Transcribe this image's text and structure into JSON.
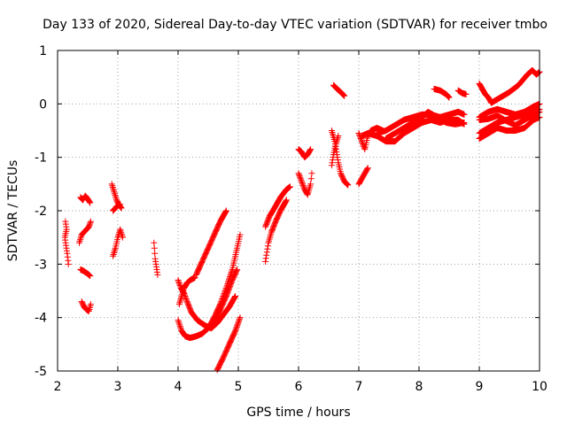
{
  "chart_data": {
    "type": "scatter",
    "title": "Day 133 of 2020, Sidereal Day-to-day VTEC variation (SDTVAR) for receiver tmbo",
    "xlabel": "GPS time / hours",
    "ylabel": "SDTVAR / TECUs",
    "xlim": [
      2,
      10
    ],
    "ylim": [
      -5,
      1
    ],
    "xticks": [
      "2",
      "3",
      "4",
      "5",
      "6",
      "7",
      "8",
      "9",
      "10"
    ],
    "yticks": [
      "-5",
      "-4",
      "-3",
      "-2",
      "-1",
      "0",
      "1"
    ],
    "grid": true,
    "marker": "+",
    "color": "#ff0000",
    "segments": [
      [
        [
          2.13,
          -2.2
        ],
        [
          2.15,
          -2.35
        ],
        [
          2.12,
          -2.5
        ],
        [
          2.14,
          -2.65
        ],
        [
          2.16,
          -2.8
        ],
        [
          2.18,
          -3.0
        ]
      ],
      [
        [
          2.38,
          -1.75
        ],
        [
          2.42,
          -1.8
        ],
        [
          2.46,
          -1.72
        ],
        [
          2.5,
          -1.78
        ],
        [
          2.54,
          -1.85
        ]
      ],
      [
        [
          2.36,
          -2.6
        ],
        [
          2.4,
          -2.45
        ],
        [
          2.44,
          -2.4
        ],
        [
          2.48,
          -2.35
        ],
        [
          2.52,
          -2.3
        ],
        [
          2.55,
          -2.2
        ]
      ],
      [
        [
          2.38,
          -3.1
        ],
        [
          2.42,
          -3.12
        ],
        [
          2.46,
          -3.15
        ],
        [
          2.5,
          -3.18
        ],
        [
          2.54,
          -3.22
        ]
      ],
      [
        [
          2.4,
          -3.7
        ],
        [
          2.44,
          -3.8
        ],
        [
          2.48,
          -3.85
        ],
        [
          2.52,
          -3.88
        ],
        [
          2.55,
          -3.75
        ]
      ],
      [
        [
          2.9,
          -1.5
        ],
        [
          2.94,
          -1.65
        ],
        [
          2.98,
          -1.8
        ],
        [
          3.02,
          -1.9
        ],
        [
          3.06,
          -1.95
        ]
      ],
      [
        [
          2.92,
          -2.0
        ],
        [
          2.96,
          -1.95
        ],
        [
          3.0,
          -1.9
        ],
        [
          3.04,
          -1.88
        ]
      ],
      [
        [
          2.92,
          -2.85
        ],
        [
          2.96,
          -2.7
        ],
        [
          3.0,
          -2.5
        ],
        [
          3.04,
          -2.35
        ],
        [
          3.08,
          -2.5
        ]
      ],
      [
        [
          3.6,
          -2.6
        ],
        [
          3.62,
          -2.9
        ],
        [
          3.64,
          -3.05
        ],
        [
          3.66,
          -3.2
        ]
      ],
      [
        [
          4.0,
          -3.3
        ],
        [
          4.05,
          -3.45
        ],
        [
          4.1,
          -3.55
        ],
        [
          4.15,
          -3.7
        ],
        [
          4.22,
          -3.9
        ],
        [
          4.32,
          -4.05
        ],
        [
          4.45,
          -4.15
        ],
        [
          4.55,
          -4.2
        ],
        [
          4.65,
          -4.1
        ],
        [
          4.75,
          -3.95
        ],
        [
          4.85,
          -3.8
        ],
        [
          4.95,
          -3.6
        ]
      ],
      [
        [
          4.0,
          -4.05
        ],
        [
          4.06,
          -4.25
        ],
        [
          4.12,
          -4.35
        ],
        [
          4.2,
          -4.38
        ],
        [
          4.3,
          -4.35
        ],
        [
          4.4,
          -4.3
        ],
        [
          4.5,
          -4.2
        ],
        [
          4.6,
          -4.05
        ],
        [
          4.7,
          -3.85
        ],
        [
          4.8,
          -3.6
        ],
        [
          4.9,
          -3.3
        ],
        [
          4.98,
          -3.1
        ]
      ],
      [
        [
          4.02,
          -3.75
        ],
        [
          4.06,
          -3.6
        ],
        [
          4.1,
          -3.45
        ],
        [
          4.15,
          -3.35
        ],
        [
          4.2,
          -3.3
        ],
        [
          4.28,
          -3.25
        ]
      ],
      [
        [
          4.3,
          -3.2
        ],
        [
          4.4,
          -2.95
        ],
        [
          4.5,
          -2.7
        ],
        [
          4.6,
          -2.45
        ],
        [
          4.7,
          -2.2
        ],
        [
          4.8,
          -2.0
        ]
      ],
      [
        [
          4.5,
          -4.2
        ],
        [
          4.6,
          -4.0
        ],
        [
          4.7,
          -3.75
        ],
        [
          4.8,
          -3.45
        ],
        [
          4.9,
          -3.1
        ],
        [
          4.98,
          -2.7
        ],
        [
          5.03,
          -2.45
        ]
      ],
      [
        [
          4.65,
          -4.98
        ],
        [
          4.75,
          -4.75
        ],
        [
          4.85,
          -4.5
        ],
        [
          4.95,
          -4.25
        ],
        [
          5.03,
          -4.0
        ]
      ],
      [
        [
          5.45,
          -2.95
        ],
        [
          5.5,
          -2.6
        ],
        [
          5.55,
          -2.4
        ],
        [
          5.62,
          -2.2
        ],
        [
          5.7,
          -2.0
        ],
        [
          5.8,
          -1.8
        ]
      ],
      [
        [
          5.45,
          -2.3
        ],
        [
          5.52,
          -2.1
        ],
        [
          5.6,
          -1.95
        ],
        [
          5.7,
          -1.75
        ],
        [
          5.8,
          -1.6
        ],
        [
          5.86,
          -1.55
        ]
      ],
      [
        [
          6.0,
          -0.85
        ],
        [
          6.05,
          -0.9
        ],
        [
          6.1,
          -1.0
        ],
        [
          6.15,
          -0.95
        ],
        [
          6.2,
          -0.85
        ]
      ],
      [
        [
          6.0,
          -1.3
        ],
        [
          6.05,
          -1.45
        ],
        [
          6.1,
          -1.6
        ],
        [
          6.15,
          -1.7
        ],
        [
          6.2,
          -1.5
        ],
        [
          6.22,
          -1.3
        ]
      ],
      [
        [
          6.58,
          0.35
        ],
        [
          6.64,
          0.28
        ],
        [
          6.7,
          0.22
        ],
        [
          6.76,
          0.15
        ]
      ],
      [
        [
          6.55,
          -0.5
        ],
        [
          6.6,
          -0.7
        ],
        [
          6.63,
          -0.9
        ],
        [
          6.66,
          -1.1
        ],
        [
          6.7,
          -1.3
        ],
        [
          6.76,
          -1.45
        ],
        [
          6.82,
          -1.52
        ]
      ],
      [
        [
          6.55,
          -1.15
        ],
        [
          6.58,
          -0.95
        ],
        [
          6.62,
          -0.75
        ],
        [
          6.66,
          -0.6
        ]
      ],
      [
        [
          7.0,
          -1.5
        ],
        [
          7.05,
          -1.4
        ],
        [
          7.1,
          -1.3
        ],
        [
          7.15,
          -1.2
        ]
      ],
      [
        [
          7.0,
          -0.55
        ],
        [
          7.05,
          -0.7
        ],
        [
          7.1,
          -0.85
        ],
        [
          7.15,
          -0.6
        ],
        [
          7.2,
          -0.5
        ],
        [
          7.3,
          -0.45
        ],
        [
          7.4,
          -0.5
        ]
      ],
      [
        [
          7.05,
          -0.6
        ],
        [
          7.15,
          -0.55
        ],
        [
          7.3,
          -0.6
        ],
        [
          7.45,
          -0.7
        ],
        [
          7.6,
          -0.7
        ],
        [
          7.75,
          -0.55
        ],
        [
          7.9,
          -0.45
        ],
        [
          8.05,
          -0.35
        ],
        [
          8.2,
          -0.3
        ],
        [
          8.35,
          -0.35
        ],
        [
          8.5,
          -0.3
        ],
        [
          8.65,
          -0.3
        ],
        [
          8.75,
          -0.38
        ]
      ],
      [
        [
          7.3,
          -0.55
        ],
        [
          7.45,
          -0.5
        ],
        [
          7.6,
          -0.4
        ],
        [
          7.75,
          -0.3
        ],
        [
          7.9,
          -0.25
        ],
        [
          8.05,
          -0.2
        ],
        [
          8.2,
          -0.2
        ],
        [
          8.35,
          -0.25
        ],
        [
          8.5,
          -0.2
        ],
        [
          8.65,
          -0.15
        ],
        [
          8.75,
          -0.2
        ]
      ],
      [
        [
          7.45,
          -0.65
        ],
        [
          7.6,
          -0.55
        ],
        [
          7.75,
          -0.45
        ],
        [
          7.9,
          -0.35
        ],
        [
          8.0,
          -0.3
        ],
        [
          8.15,
          -0.15
        ],
        [
          8.3,
          -0.25
        ],
        [
          8.45,
          -0.35
        ],
        [
          8.6,
          -0.38
        ],
        [
          8.75,
          -0.35
        ]
      ],
      [
        [
          8.25,
          0.28
        ],
        [
          8.35,
          0.25
        ],
        [
          8.45,
          0.18
        ],
        [
          8.5,
          0.12
        ]
      ],
      [
        [
          8.65,
          0.25
        ],
        [
          8.72,
          0.2
        ],
        [
          8.78,
          0.18
        ]
      ],
      [
        [
          9.0,
          0.38
        ],
        [
          9.05,
          0.28
        ],
        [
          9.1,
          0.18
        ],
        [
          9.15,
          0.12
        ],
        [
          9.2,
          0.02
        ]
      ],
      [
        [
          9.2,
          0.02
        ],
        [
          9.35,
          0.12
        ],
        [
          9.5,
          0.22
        ],
        [
          9.65,
          0.35
        ],
        [
          9.8,
          0.55
        ],
        [
          9.88,
          0.63
        ],
        [
          9.95,
          0.55
        ],
        [
          10.0,
          0.6
        ]
      ],
      [
        [
          9.0,
          -0.55
        ],
        [
          9.15,
          -0.45
        ],
        [
          9.3,
          -0.35
        ],
        [
          9.45,
          -0.3
        ],
        [
          9.6,
          -0.25
        ],
        [
          9.75,
          -0.2
        ],
        [
          9.9,
          -0.15
        ],
        [
          10.0,
          -0.1
        ]
      ],
      [
        [
          9.0,
          -0.3
        ],
        [
          9.15,
          -0.28
        ],
        [
          9.3,
          -0.22
        ],
        [
          9.45,
          -0.32
        ],
        [
          9.6,
          -0.4
        ],
        [
          9.75,
          -0.3
        ],
        [
          9.9,
          -0.2
        ],
        [
          10.0,
          -0.15
        ]
      ],
      [
        [
          9.0,
          -0.65
        ],
        [
          9.15,
          -0.55
        ],
        [
          9.3,
          -0.45
        ],
        [
          9.45,
          -0.5
        ],
        [
          9.6,
          -0.5
        ],
        [
          9.75,
          -0.45
        ],
        [
          9.9,
          -0.3
        ],
        [
          10.0,
          -0.25
        ]
      ],
      [
        [
          9.0,
          -0.25
        ],
        [
          9.15,
          -0.15
        ],
        [
          9.3,
          -0.1
        ],
        [
          9.45,
          -0.15
        ],
        [
          9.6,
          -0.2
        ],
        [
          9.75,
          -0.15
        ],
        [
          9.9,
          -0.05
        ],
        [
          10.0,
          0.0
        ]
      ]
    ]
  }
}
